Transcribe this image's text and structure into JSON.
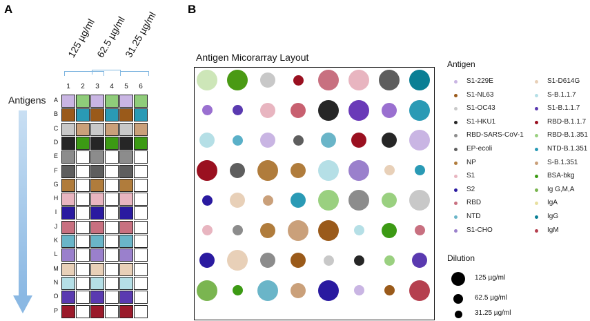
{
  "panel_a": {
    "letter": "A",
    "concentrations": [
      "125 µg/ml",
      "62.5 µg/ml",
      "31.25 µg/ml"
    ],
    "columns": [
      "1",
      "2",
      "3",
      "4",
      "5",
      "6"
    ],
    "rows": [
      "A",
      "B",
      "C",
      "D",
      "E",
      "F",
      "G",
      "H",
      "I",
      "J",
      "K",
      "L",
      "M",
      "N",
      "O",
      "P"
    ],
    "axis_label": "Antigens",
    "row_colors": [
      [
        "#c9b5e3",
        "#8fcc7a"
      ],
      [
        "#9a5a1a",
        "#2a9ab5"
      ],
      [
        "#c8c8c8",
        "#caa07a"
      ],
      [
        "#262626",
        "#3c9a14"
      ],
      [
        "#8c8c8c",
        "#ffffff"
      ],
      [
        "#5e5e5e",
        "#ffffff"
      ],
      [
        "#b07c3c",
        "#ffffff"
      ],
      [
        "#e8b5c0",
        "#ffffff"
      ],
      [
        "#2a1aa0",
        "#ffffff"
      ],
      [
        "#c87080",
        "#ffffff"
      ],
      [
        "#6ab5c8",
        "#ffffff"
      ],
      [
        "#9a80cc",
        "#ffffff"
      ],
      [
        "#e8d0b8",
        "#ffffff"
      ],
      [
        "#b5dfe6",
        "#ffffff"
      ],
      [
        "#5a3ab0",
        "#ffffff"
      ],
      [
        "#9a1a2a",
        "#ffffff"
      ]
    ]
  },
  "panel_b": {
    "letter": "B",
    "title": "Antigen Micorarray Layout",
    "spots": [
      [
        [
          "#cde6b8",
          3
        ],
        [
          "#4a9a14",
          3
        ],
        [
          "#c8c8c8",
          2
        ],
        [
          "#9a1020",
          1
        ],
        [
          "#c87080",
          3
        ],
        [
          "#e8b5c0",
          3
        ],
        [
          "#5e5e5e",
          3
        ],
        [
          "#0a7f95",
          3
        ]
      ],
      [
        [
          "#9a70d0",
          1
        ],
        [
          "#5a3ab0",
          1
        ],
        [
          "#e8b5c0",
          2
        ],
        [
          "#c86070",
          2
        ],
        [
          "#262626",
          3
        ],
        [
          "#6a3ab8",
          3
        ],
        [
          "#9a70d0",
          2
        ],
        [
          "#2a9ab5",
          3
        ]
      ],
      [
        [
          "#b5dfe6",
          2
        ],
        [
          "#5ab0c8",
          1
        ],
        [
          "#c9b5e3",
          2
        ],
        [
          "#5e5e5e",
          1
        ],
        [
          "#6ab5c8",
          2
        ],
        [
          "#9a1020",
          2
        ],
        [
          "#262626",
          2
        ],
        [
          "#c9b5e3",
          3
        ]
      ],
      [
        [
          "#9a1020",
          3
        ],
        [
          "#5e5e5e",
          2
        ],
        [
          "#b07c3c",
          3
        ],
        [
          "#b07c3c",
          2
        ],
        [
          "#b5dfe6",
          3
        ],
        [
          "#9a80cc",
          3
        ],
        [
          "#e8d0b8",
          1
        ],
        [
          "#2a9ab5",
          1
        ]
      ],
      [
        [
          "#2a1aa0",
          1
        ],
        [
          "#e8d0b8",
          2
        ],
        [
          "#caa07a",
          1
        ],
        [
          "#2a9ab5",
          2
        ],
        [
          "#9ad080",
          3
        ],
        [
          "#8c8c8c",
          3
        ],
        [
          "#9ad080",
          2
        ],
        [
          "#c8c8c8",
          3
        ]
      ],
      [
        [
          "#e8b5c0",
          1
        ],
        [
          "#8c8c8c",
          1
        ],
        [
          "#b07c3c",
          2
        ],
        [
          "#caa07a",
          3
        ],
        [
          "#9a5a1a",
          3
        ],
        [
          "#b5dfe6",
          1
        ],
        [
          "#3c9a14",
          2
        ],
        [
          "#c87080",
          1
        ]
      ],
      [
        [
          "#2a1aa0",
          2
        ],
        [
          "#e8d0b8",
          3
        ],
        [
          "#8c8c8c",
          2
        ],
        [
          "#9a5a1a",
          2
        ],
        [
          "#c8c8c8",
          1
        ],
        [
          "#262626",
          1
        ],
        [
          "#9ad080",
          1
        ],
        [
          "#5a3ab0",
          2
        ]
      ],
      [
        [
          "#7ab550",
          3
        ],
        [
          "#3c9a14",
          1
        ],
        [
          "#6ab5c8",
          3
        ],
        [
          "#caa07a",
          2
        ],
        [
          "#2a1aa0",
          3
        ],
        [
          "#c9b5e3",
          1
        ],
        [
          "#9a5a1a",
          1
        ],
        [
          "#b5404f",
          3
        ]
      ]
    ]
  },
  "legend": {
    "title": "Antigen",
    "col1": [
      {
        "label": "S1-229E",
        "color": "#c9b5e3"
      },
      {
        "label": "S1-NL63",
        "color": "#9a5a1a"
      },
      {
        "label": "S1-OC43",
        "color": "#c8c8c8"
      },
      {
        "label": "S1-HKU1",
        "color": "#262626"
      },
      {
        "label": "RBD-SARS-CoV-1",
        "color": "#8c8c8c"
      },
      {
        "label": "EP-ecoli",
        "color": "#5e5e5e"
      },
      {
        "label": "NP",
        "color": "#b07c3c"
      },
      {
        "label": "S1",
        "color": "#e8b5c0"
      },
      {
        "label": "S2",
        "color": "#2a1aa0"
      },
      {
        "label": "RBD",
        "color": "#c87080"
      },
      {
        "label": "NTD",
        "color": "#6ab5c8"
      },
      {
        "label": "S1-CHO",
        "color": "#9a80cc"
      }
    ],
    "col2": [
      {
        "label": "S1-D614G",
        "color": "#e8d0b8"
      },
      {
        "label": "S-B.1.1.7",
        "color": "#b5dfe6"
      },
      {
        "label": "S1-B.1.1.7",
        "color": "#5a3ab0"
      },
      {
        "label": "RBD-B.1.1.7",
        "color": "#9a1020"
      },
      {
        "label": "RBD-B.1.351",
        "color": "#9ad080"
      },
      {
        "label": "NTD-B.1.351",
        "color": "#2a9ab5"
      },
      {
        "label": "S-B.1.351",
        "color": "#caa07a"
      },
      {
        "label": "BSA-bkg",
        "color": "#3c9a14"
      },
      {
        "label": "Ig G,M,A",
        "color": "#7ab550"
      },
      {
        "label": "IgA",
        "color": "#e8e0a0"
      },
      {
        "label": "IgG",
        "color": "#0a7f95"
      },
      {
        "label": "IgM",
        "color": "#b5404f"
      }
    ]
  },
  "dilution": {
    "title": "Dilution",
    "items": [
      "125 µg/ml",
      "62.5 µg/ml",
      "31.25 µg/ml"
    ]
  }
}
